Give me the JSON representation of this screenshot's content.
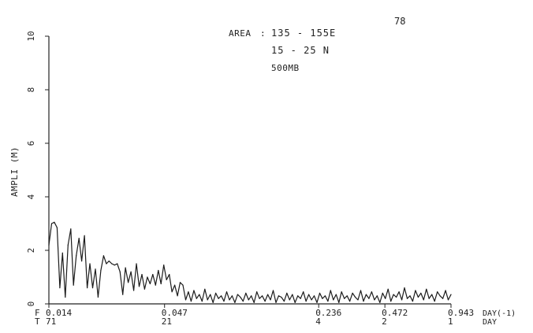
{
  "page_number": "78",
  "annotation": {
    "area_label": "AREA",
    "area_value": "135 - 155E",
    "lat_value": "15 - 25 N",
    "level_value": "500MB"
  },
  "chart_data": {
    "type": "line",
    "title": "",
    "ylabel": "AMPLI (M)",
    "ylim": [
      0,
      10
    ],
    "yticks": [
      "0",
      "2",
      "4",
      "6",
      "8",
      "10"
    ],
    "x_axis": {
      "freq_row_prefix": "F",
      "period_row_prefix": "T",
      "freq_unit": "DAY(-1)",
      "period_unit": "DAY",
      "ticks": [
        {
          "freq": "0.014",
          "period": "71"
        },
        {
          "freq": "0.047",
          "period": "21"
        },
        {
          "freq": "0.236",
          "period": "4"
        },
        {
          "freq": "0.472",
          "period": "2"
        },
        {
          "freq": "0.943",
          "period": "1"
        }
      ]
    },
    "series": [
      {
        "values": [
          2.2,
          3.0,
          3.05,
          2.85,
          0.6,
          1.9,
          0.25,
          2.2,
          2.8,
          0.7,
          1.8,
          2.45,
          1.6,
          2.55,
          0.6,
          1.5,
          0.6,
          1.3,
          0.25,
          1.25,
          1.8,
          1.5,
          1.6,
          1.5,
          1.45,
          1.5,
          1.2,
          0.35,
          1.35,
          0.8,
          1.2,
          0.5,
          1.5,
          0.65,
          1.1,
          0.55,
          1.0,
          0.75,
          1.1,
          0.7,
          1.25,
          0.75,
          1.45,
          0.9,
          1.1,
          0.45,
          0.7,
          0.3,
          0.8,
          0.7,
          0.15,
          0.45,
          0.1,
          0.5,
          0.2,
          0.35,
          0.1,
          0.55,
          0.15,
          0.35,
          0.05,
          0.4,
          0.2,
          0.3,
          0.1,
          0.45,
          0.15,
          0.3,
          0.05,
          0.35,
          0.25,
          0.1,
          0.4,
          0.15,
          0.3,
          0.05,
          0.45,
          0.2,
          0.3,
          0.1,
          0.35,
          0.15,
          0.5,
          0.05,
          0.3,
          0.25,
          0.1,
          0.4,
          0.15,
          0.35,
          0.05,
          0.3,
          0.2,
          0.45,
          0.1,
          0.35,
          0.15,
          0.3,
          0.05,
          0.4,
          0.2,
          0.3,
          0.1,
          0.5,
          0.15,
          0.35,
          0.05,
          0.45,
          0.2,
          0.3,
          0.1,
          0.4,
          0.25,
          0.15,
          0.5,
          0.1,
          0.35,
          0.2,
          0.45,
          0.15,
          0.3,
          0.05,
          0.4,
          0.2,
          0.55,
          0.1,
          0.35,
          0.25,
          0.45,
          0.15,
          0.6,
          0.2,
          0.3,
          0.1,
          0.5,
          0.25,
          0.4,
          0.15,
          0.55,
          0.2,
          0.35,
          0.1,
          0.45,
          0.3,
          0.2,
          0.5,
          0.15,
          0.35
        ]
      }
    ]
  }
}
